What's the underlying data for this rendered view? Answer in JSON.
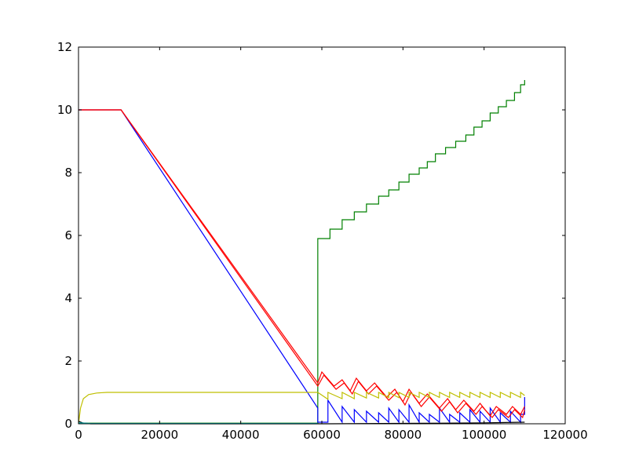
{
  "chart_data": {
    "type": "line",
    "title": "",
    "xlabel": "",
    "ylabel": "",
    "xlim": [
      0,
      120000
    ],
    "ylim": [
      0,
      12
    ],
    "grid": false,
    "legend": "none",
    "x_ticks": [
      0,
      20000,
      40000,
      60000,
      80000,
      100000,
      120000
    ],
    "x_tick_labels": [
      "0",
      "20000",
      "40000",
      "60000",
      "80000",
      "100000",
      "120000"
    ],
    "y_ticks": [
      0,
      2,
      4,
      6,
      8,
      10,
      12
    ],
    "y_tick_labels": [
      "0",
      "2",
      "4",
      "6",
      "8",
      "10",
      "12"
    ],
    "series": [
      {
        "color": "#008000",
        "style": "steps",
        "points": [
          [
            0,
            0.02
          ],
          [
            59000,
            0.02
          ],
          [
            59000,
            5.9
          ],
          [
            62000,
            5.9
          ],
          [
            62000,
            6.2
          ],
          [
            65000,
            6.2
          ],
          [
            65000,
            6.5
          ],
          [
            68000,
            6.5
          ],
          [
            68000,
            6.75
          ],
          [
            71000,
            6.75
          ],
          [
            71000,
            7.0
          ],
          [
            74000,
            7.0
          ],
          [
            74000,
            7.25
          ],
          [
            76500,
            7.25
          ],
          [
            76500,
            7.45
          ],
          [
            79000,
            7.45
          ],
          [
            79000,
            7.7
          ],
          [
            81500,
            7.7
          ],
          [
            81500,
            7.95
          ],
          [
            84000,
            7.95
          ],
          [
            84000,
            8.15
          ],
          [
            86000,
            8.15
          ],
          [
            86000,
            8.35
          ],
          [
            88000,
            8.35
          ],
          [
            88000,
            8.6
          ],
          [
            90500,
            8.6
          ],
          [
            90500,
            8.8
          ],
          [
            93000,
            8.8
          ],
          [
            93000,
            9.0
          ],
          [
            95500,
            9.0
          ],
          [
            95500,
            9.2
          ],
          [
            97500,
            9.2
          ],
          [
            97500,
            9.45
          ],
          [
            99500,
            9.45
          ],
          [
            99500,
            9.65
          ],
          [
            101500,
            9.65
          ],
          [
            101500,
            9.9
          ],
          [
            103500,
            9.9
          ],
          [
            103500,
            10.1
          ],
          [
            105500,
            10.1
          ],
          [
            105500,
            10.3
          ],
          [
            107500,
            10.3
          ],
          [
            107500,
            10.55
          ],
          [
            109000,
            10.55
          ],
          [
            109000,
            10.8
          ],
          [
            110000,
            10.8
          ],
          [
            110000,
            10.95
          ]
        ]
      },
      {
        "color": "#0000ff",
        "style": "steps",
        "points": [
          [
            0,
            10
          ],
          [
            10500,
            10
          ],
          [
            59000,
            0.5
          ],
          [
            59000,
            0.05
          ],
          [
            61500,
            0.05
          ],
          [
            61500,
            0.75
          ],
          [
            65000,
            0.05
          ],
          [
            65000,
            0.55
          ],
          [
            68000,
            0.05
          ],
          [
            68000,
            0.45
          ],
          [
            71000,
            0.05
          ],
          [
            71000,
            0.4
          ],
          [
            74000,
            0.05
          ],
          [
            74000,
            0.35
          ],
          [
            76500,
            0.05
          ],
          [
            76500,
            0.5
          ],
          [
            79000,
            0.05
          ],
          [
            79000,
            0.45
          ],
          [
            81500,
            0.05
          ],
          [
            81500,
            0.6
          ],
          [
            84000,
            0.05
          ],
          [
            84000,
            0.35
          ],
          [
            86500,
            0.05
          ],
          [
            86500,
            0.3
          ],
          [
            89000,
            0.05
          ],
          [
            89000,
            0.5
          ],
          [
            91500,
            0.05
          ],
          [
            91500,
            0.3
          ],
          [
            94000,
            0.05
          ],
          [
            94000,
            0.35
          ],
          [
            96500,
            0.05
          ],
          [
            96500,
            0.45
          ],
          [
            99000,
            0.05
          ],
          [
            99000,
            0.4
          ],
          [
            101500,
            0.05
          ],
          [
            101500,
            0.5
          ],
          [
            104000,
            0.05
          ],
          [
            104000,
            0.35
          ],
          [
            106500,
            0.05
          ],
          [
            106500,
            0.4
          ],
          [
            109000,
            0.05
          ],
          [
            109000,
            0.3
          ],
          [
            110000,
            0.3
          ],
          [
            110000,
            0.85
          ]
        ]
      },
      {
        "color": "#ff0000",
        "style": "steps",
        "points": [
          [
            0,
            10
          ],
          [
            10500,
            10
          ],
          [
            59000,
            1.3
          ],
          [
            60000,
            1.65
          ],
          [
            63000,
            1.2
          ],
          [
            65000,
            1.4
          ],
          [
            67000,
            1.05
          ],
          [
            68500,
            1.45
          ],
          [
            71000,
            1.05
          ],
          [
            73000,
            1.3
          ],
          [
            76000,
            0.85
          ],
          [
            78000,
            1.1
          ],
          [
            80000,
            0.7
          ],
          [
            81500,
            1.1
          ],
          [
            84000,
            0.65
          ],
          [
            86000,
            0.95
          ],
          [
            89000,
            0.5
          ],
          [
            91000,
            0.8
          ],
          [
            93000,
            0.45
          ],
          [
            95000,
            0.75
          ],
          [
            97500,
            0.4
          ],
          [
            99000,
            0.65
          ],
          [
            101500,
            0.25
          ],
          [
            103000,
            0.55
          ],
          [
            105500,
            0.3
          ],
          [
            107000,
            0.55
          ],
          [
            109000,
            0.3
          ],
          [
            110000,
            0.55
          ]
        ]
      },
      {
        "color": "#ff0000",
        "style": "steps",
        "points": [
          [
            0,
            10
          ],
          [
            10500,
            10
          ],
          [
            59000,
            1.2
          ],
          [
            60500,
            1.55
          ],
          [
            63500,
            1.1
          ],
          [
            65500,
            1.3
          ],
          [
            67500,
            0.95
          ],
          [
            69000,
            1.35
          ],
          [
            71500,
            0.95
          ],
          [
            73500,
            1.2
          ],
          [
            76500,
            0.75
          ],
          [
            78500,
            1.0
          ],
          [
            80500,
            0.6
          ],
          [
            82000,
            1.0
          ],
          [
            84500,
            0.55
          ],
          [
            86500,
            0.85
          ],
          [
            89500,
            0.4
          ],
          [
            91500,
            0.7
          ],
          [
            93500,
            0.35
          ],
          [
            95500,
            0.65
          ],
          [
            98000,
            0.3
          ],
          [
            99500,
            0.55
          ],
          [
            102000,
            0.2
          ],
          [
            103500,
            0.45
          ],
          [
            106000,
            0.2
          ],
          [
            107500,
            0.45
          ],
          [
            109500,
            0.2
          ],
          [
            110000,
            0.45
          ]
        ]
      },
      {
        "color": "#bfbf00",
        "style": "steps",
        "points": [
          [
            0,
            0.0
          ],
          [
            500,
            0.5
          ],
          [
            1200,
            0.8
          ],
          [
            2500,
            0.93
          ],
          [
            4500,
            0.98
          ],
          [
            7000,
            1.0
          ],
          [
            59000,
            1.0
          ],
          [
            61500,
            0.78
          ],
          [
            61500,
            1.0
          ],
          [
            65000,
            0.8
          ],
          [
            65000,
            1.0
          ],
          [
            68000,
            0.8
          ],
          [
            68000,
            1.0
          ],
          [
            71000,
            0.82
          ],
          [
            71000,
            1.0
          ],
          [
            74000,
            0.82
          ],
          [
            74000,
            1.0
          ],
          [
            76500,
            0.83
          ],
          [
            76500,
            1.0
          ],
          [
            79000,
            0.83
          ],
          [
            79000,
            1.0
          ],
          [
            81500,
            0.84
          ],
          [
            81500,
            1.0
          ],
          [
            84000,
            0.84
          ],
          [
            84000,
            1.0
          ],
          [
            86500,
            0.84
          ],
          [
            86500,
            1.0
          ],
          [
            89000,
            0.84
          ],
          [
            89000,
            1.0
          ],
          [
            91500,
            0.84
          ],
          [
            91500,
            1.0
          ],
          [
            94000,
            0.84
          ],
          [
            94000,
            1.0
          ],
          [
            96500,
            0.84
          ],
          [
            96500,
            1.0
          ],
          [
            99000,
            0.84
          ],
          [
            99000,
            1.0
          ],
          [
            101500,
            0.84
          ],
          [
            101500,
            1.0
          ],
          [
            104000,
            0.84
          ],
          [
            104000,
            1.0
          ],
          [
            106500,
            0.84
          ],
          [
            106500,
            1.0
          ],
          [
            109000,
            0.84
          ],
          [
            109000,
            1.0
          ],
          [
            110000,
            0.9
          ]
        ]
      },
      {
        "color": "#000000",
        "style": "steps",
        "points": [
          [
            0,
            0.08
          ],
          [
            1000,
            0.03
          ],
          [
            3000,
            0.0
          ],
          [
            59000,
            0.0
          ],
          [
            62000,
            0.0
          ],
          [
            90000,
            0.02
          ],
          [
            100000,
            0.03
          ],
          [
            110000,
            0.05
          ]
        ]
      },
      {
        "color": "#00bfbf",
        "style": "steps",
        "points": [
          [
            0,
            0.03
          ],
          [
            3000,
            0.01
          ],
          [
            59000,
            0.01
          ]
        ]
      }
    ]
  }
}
